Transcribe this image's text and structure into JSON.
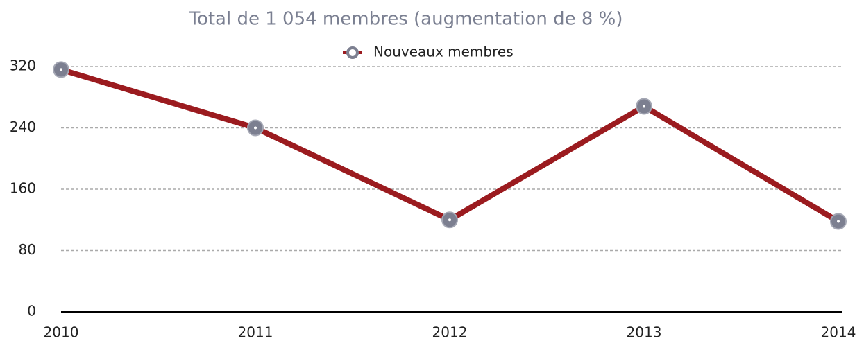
{
  "chart_data": {
    "type": "line",
    "title": "Total de 1 054 membres (augmentation de 8 %)",
    "categories": [
      "2010",
      "2011",
      "2012",
      "2013",
      "2014"
    ],
    "series": [
      {
        "name": "Nouveaux membres",
        "color": "#9b1b1f",
        "marker_color": "#7c7f90",
        "values": [
          316,
          240,
          120,
          268,
          118
        ]
      }
    ],
    "ylim": [
      0,
      320
    ],
    "yticks": [
      0,
      80,
      160,
      240,
      320
    ],
    "grid": true,
    "legend": "top"
  }
}
